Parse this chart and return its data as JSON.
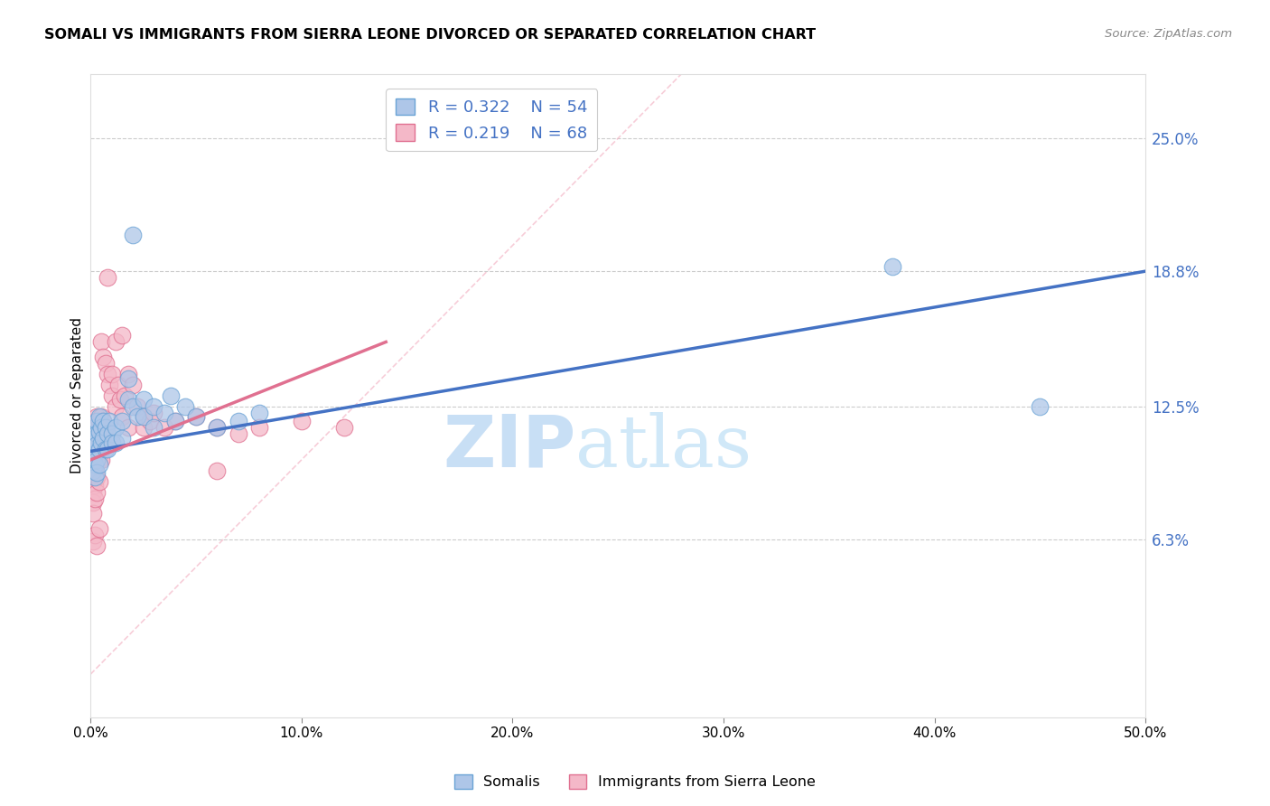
{
  "title": "SOMALI VS IMMIGRANTS FROM SIERRA LEONE DIVORCED OR SEPARATED CORRELATION CHART",
  "source": "Source: ZipAtlas.com",
  "ylabel": "Divorced or Separated",
  "xlim": [
    0.0,
    0.5
  ],
  "ylim": [
    -0.02,
    0.28
  ],
  "plot_ylim": [
    -0.02,
    0.28
  ],
  "xticks": [
    0.0,
    0.1,
    0.2,
    0.3,
    0.4,
    0.5
  ],
  "xtick_labels": [
    "0.0%",
    "10.0%",
    "20.0%",
    "30.0%",
    "40.0%",
    "50.0%"
  ],
  "ytick_right_labels": [
    "25.0%",
    "18.8%",
    "12.5%",
    "6.3%"
  ],
  "ytick_right_values": [
    0.25,
    0.188,
    0.125,
    0.063
  ],
  "gridline_y": [
    0.25,
    0.188,
    0.125,
    0.063
  ],
  "somali_color": "#aec6e8",
  "sierra_leone_color": "#f4b8c8",
  "somali_edge_color": "#6aa3d5",
  "sierra_leone_edge_color": "#e07090",
  "trend_line_somali_color": "#4472c4",
  "trend_line_sierra_color": "#e07090",
  "diagonal_line_color": "#f4b8c8",
  "watermark_zip": "ZIP",
  "watermark_atlas": "atlas",
  "watermark_color": "#c8dff5",
  "background_color": "#ffffff",
  "legend_R_N_color": "#4472c4",
  "somali_trend": [
    0.0,
    0.104,
    0.5,
    0.188
  ],
  "sierra_trend": [
    0.0,
    0.1,
    0.14,
    0.155
  ],
  "somali_points": [
    [
      0.001,
      0.108
    ],
    [
      0.001,
      0.112
    ],
    [
      0.001,
      0.105
    ],
    [
      0.001,
      0.1
    ],
    [
      0.001,
      0.095
    ],
    [
      0.002,
      0.115
    ],
    [
      0.002,
      0.11
    ],
    [
      0.002,
      0.108
    ],
    [
      0.002,
      0.103
    ],
    [
      0.002,
      0.098
    ],
    [
      0.002,
      0.092
    ],
    [
      0.003,
      0.118
    ],
    [
      0.003,
      0.112
    ],
    [
      0.003,
      0.107
    ],
    [
      0.003,
      0.1
    ],
    [
      0.003,
      0.094
    ],
    [
      0.004,
      0.12
    ],
    [
      0.004,
      0.113
    ],
    [
      0.004,
      0.105
    ],
    [
      0.004,
      0.098
    ],
    [
      0.005,
      0.115
    ],
    [
      0.005,
      0.108
    ],
    [
      0.006,
      0.118
    ],
    [
      0.006,
      0.11
    ],
    [
      0.007,
      0.115
    ],
    [
      0.007,
      0.105
    ],
    [
      0.008,
      0.112
    ],
    [
      0.008,
      0.105
    ],
    [
      0.009,
      0.118
    ],
    [
      0.01,
      0.112
    ],
    [
      0.01,
      0.108
    ],
    [
      0.012,
      0.115
    ],
    [
      0.012,
      0.108
    ],
    [
      0.015,
      0.118
    ],
    [
      0.015,
      0.11
    ],
    [
      0.018,
      0.138
    ],
    [
      0.018,
      0.128
    ],
    [
      0.02,
      0.125
    ],
    [
      0.022,
      0.12
    ],
    [
      0.025,
      0.128
    ],
    [
      0.025,
      0.12
    ],
    [
      0.03,
      0.125
    ],
    [
      0.03,
      0.115
    ],
    [
      0.035,
      0.122
    ],
    [
      0.038,
      0.13
    ],
    [
      0.04,
      0.118
    ],
    [
      0.045,
      0.125
    ],
    [
      0.05,
      0.12
    ],
    [
      0.06,
      0.115
    ],
    [
      0.07,
      0.118
    ],
    [
      0.08,
      0.122
    ],
    [
      0.02,
      0.205
    ],
    [
      0.38,
      0.19
    ],
    [
      0.45,
      0.125
    ]
  ],
  "sierra_leone_points": [
    [
      0.001,
      0.115
    ],
    [
      0.001,
      0.11
    ],
    [
      0.001,
      0.105
    ],
    [
      0.001,
      0.1
    ],
    [
      0.001,
      0.095
    ],
    [
      0.001,
      0.09
    ],
    [
      0.001,
      0.085
    ],
    [
      0.001,
      0.08
    ],
    [
      0.001,
      0.075
    ],
    [
      0.002,
      0.118
    ],
    [
      0.002,
      0.112
    ],
    [
      0.002,
      0.108
    ],
    [
      0.002,
      0.102
    ],
    [
      0.002,
      0.095
    ],
    [
      0.002,
      0.088
    ],
    [
      0.002,
      0.082
    ],
    [
      0.003,
      0.12
    ],
    [
      0.003,
      0.115
    ],
    [
      0.003,
      0.108
    ],
    [
      0.003,
      0.1
    ],
    [
      0.003,
      0.092
    ],
    [
      0.003,
      0.085
    ],
    [
      0.004,
      0.118
    ],
    [
      0.004,
      0.11
    ],
    [
      0.004,
      0.1
    ],
    [
      0.004,
      0.09
    ],
    [
      0.005,
      0.155
    ],
    [
      0.005,
      0.12
    ],
    [
      0.005,
      0.11
    ],
    [
      0.005,
      0.1
    ],
    [
      0.006,
      0.148
    ],
    [
      0.006,
      0.118
    ],
    [
      0.006,
      0.108
    ],
    [
      0.007,
      0.145
    ],
    [
      0.007,
      0.115
    ],
    [
      0.008,
      0.14
    ],
    [
      0.008,
      0.185
    ],
    [
      0.009,
      0.135
    ],
    [
      0.01,
      0.13
    ],
    [
      0.01,
      0.14
    ],
    [
      0.012,
      0.155
    ],
    [
      0.012,
      0.125
    ],
    [
      0.013,
      0.135
    ],
    [
      0.014,
      0.128
    ],
    [
      0.015,
      0.158
    ],
    [
      0.015,
      0.12
    ],
    [
      0.016,
      0.13
    ],
    [
      0.018,
      0.14
    ],
    [
      0.018,
      0.115
    ],
    [
      0.02,
      0.135
    ],
    [
      0.022,
      0.125
    ],
    [
      0.025,
      0.12
    ],
    [
      0.025,
      0.115
    ],
    [
      0.028,
      0.118
    ],
    [
      0.03,
      0.122
    ],
    [
      0.035,
      0.115
    ],
    [
      0.04,
      0.118
    ],
    [
      0.05,
      0.12
    ],
    [
      0.06,
      0.115
    ],
    [
      0.07,
      0.112
    ],
    [
      0.08,
      0.115
    ],
    [
      0.1,
      0.118
    ],
    [
      0.12,
      0.115
    ],
    [
      0.001,
      0.062
    ],
    [
      0.002,
      0.065
    ],
    [
      0.003,
      0.06
    ],
    [
      0.004,
      0.068
    ],
    [
      0.06,
      0.095
    ]
  ]
}
